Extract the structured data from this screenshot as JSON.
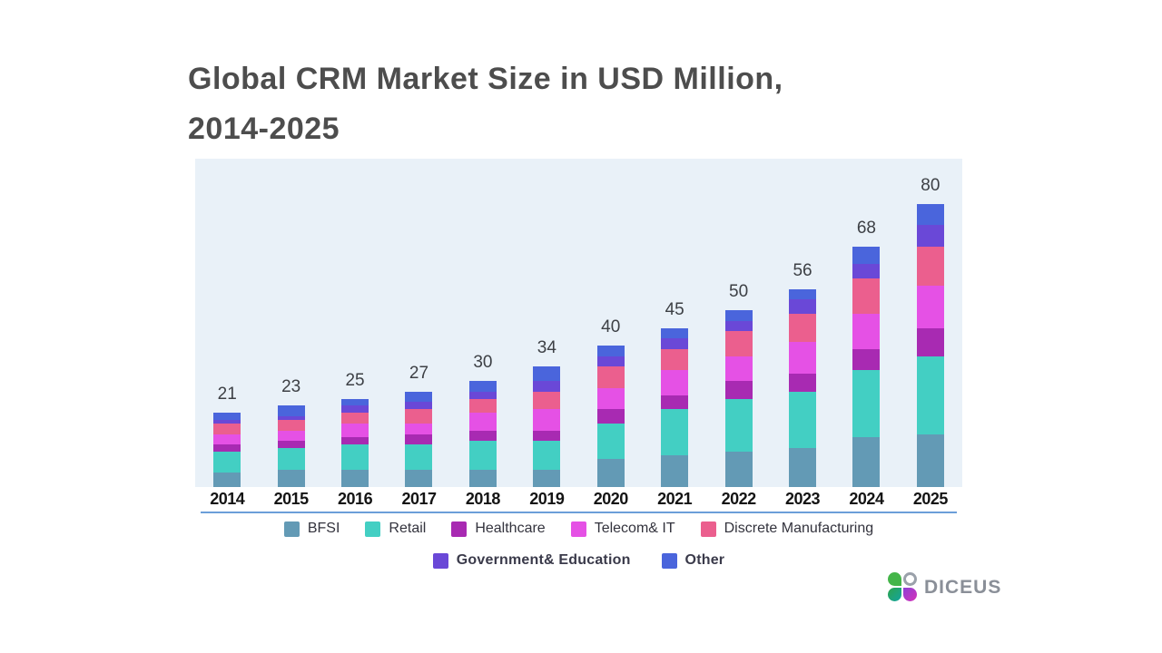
{
  "title": {
    "line1": "Global CRM Market Size in USD Million,",
    "line2": "2014-2025",
    "color": "#4d4d4d"
  },
  "chart_data": {
    "type": "bar",
    "stacked": true,
    "title": "Global CRM Market Size in USD Million, 2014-2025",
    "categories": [
      "2014",
      "2015",
      "2016",
      "2017",
      "2018",
      "2019",
      "2020",
      "2021",
      "2022",
      "2023",
      "2024",
      "2025"
    ],
    "totals": [
      21,
      23,
      25,
      27,
      30,
      34,
      40,
      45,
      50,
      56,
      68,
      80
    ],
    "series": [
      {
        "name": "BFSI",
        "color": "#639ab5",
        "values": [
          4,
          5,
          5,
          5,
          5,
          5,
          8,
          9,
          10,
          11,
          14,
          15
        ]
      },
      {
        "name": "Retail",
        "color": "#43cfc3",
        "values": [
          6,
          6,
          7,
          7,
          8,
          8,
          10,
          13,
          15,
          16,
          19,
          22
        ]
      },
      {
        "name": "Healthcare",
        "color": "#a82ab2",
        "values": [
          2,
          2,
          2,
          3,
          3,
          3,
          4,
          4,
          5,
          5,
          6,
          8
        ]
      },
      {
        "name": "Telecom& IT",
        "color": "#e551e5",
        "values": [
          3,
          3,
          4,
          3,
          5,
          6,
          6,
          7,
          7,
          9,
          10,
          12
        ]
      },
      {
        "name": "Discrete Manufacturing",
        "color": "#eb5f8e",
        "values": [
          3,
          3,
          3,
          4,
          4,
          5,
          6,
          6,
          7,
          8,
          10,
          11
        ]
      },
      {
        "name": "Government& Education",
        "color": "#6a48d7",
        "values": [
          1,
          1,
          2,
          2,
          2,
          3,
          3,
          3,
          3,
          4,
          4,
          6
        ]
      },
      {
        "name": "Other",
        "color": "#4a65dc",
        "values": [
          2,
          3,
          2,
          3,
          3,
          4,
          3,
          3,
          3,
          3,
          5,
          6
        ]
      }
    ],
    "legend_rows": [
      [
        "BFSI",
        "Retail",
        "Healthcare",
        "Telecom& IT",
        "Discrete Manufacturing"
      ],
      [
        "Government& Education",
        "Other"
      ]
    ],
    "ylim": [
      0,
      85
    ],
    "grid": false,
    "plot_background": "#e9f1f8",
    "axis_line_color": "#6b9ed9",
    "value_label_color": "#3d4045"
  },
  "logo": {
    "text": "DICEUS",
    "text_color": "#8a8f98",
    "icon": "clover-icon",
    "petal_colors": [
      "#44b549",
      "#9aa1aa",
      "#12a5a0",
      "#c738c4"
    ]
  }
}
